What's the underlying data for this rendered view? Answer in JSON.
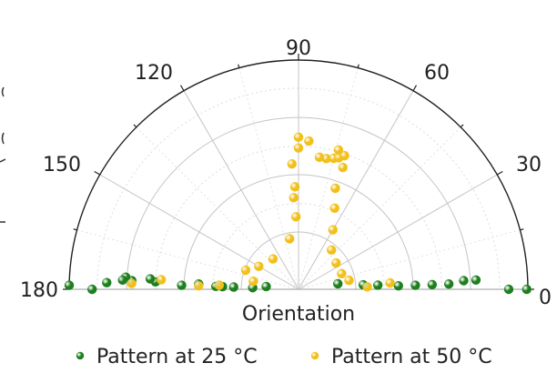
{
  "chart_data": {
    "type": "scatter",
    "coordinate_system": "polar-half",
    "title": "",
    "xlabel": "Orientation",
    "ylabel": "",
    "angle_ticks": [
      "0",
      "30",
      "60",
      "90",
      "120",
      "150",
      "180"
    ],
    "angle_range_deg": [
      0,
      180
    ],
    "radial_range": [
      0,
      1
    ],
    "radial_scale": "sqrt",
    "grid": true,
    "legend_position": "bottom",
    "series": [
      {
        "name": "Pattern at 25 °C",
        "color": "#1e7f1e",
        "points": [
          {
            "angle": 0,
            "r": 0.99
          },
          {
            "angle": 0,
            "r": 0.84
          },
          {
            "angle": 3,
            "r": 0.6
          },
          {
            "angle": 3,
            "r": 0.52
          },
          {
            "angle": 2,
            "r": 0.43
          },
          {
            "angle": 2,
            "r": 0.34
          },
          {
            "angle": 2,
            "r": 0.26
          },
          {
            "angle": 2,
            "r": 0.19
          },
          {
            "angle": 3,
            "r": 0.12
          },
          {
            "angle": 4,
            "r": 0.08
          },
          {
            "angle": 8,
            "r": 0.03
          },
          {
            "angle": 175,
            "r": 0.02
          },
          {
            "angle": 178,
            "r": 0.04
          },
          {
            "angle": 178,
            "r": 0.08
          },
          {
            "angle": 178,
            "r": 0.11
          },
          {
            "angle": 178,
            "r": 0.13
          },
          {
            "angle": 177,
            "r": 0.19
          },
          {
            "angle": 178,
            "r": 0.26
          },
          {
            "angle": 177,
            "r": 0.39
          },
          {
            "angle": 176,
            "r": 0.42
          },
          {
            "angle": 177,
            "r": 0.53
          },
          {
            "angle": 176,
            "r": 0.57
          },
          {
            "angle": 177,
            "r": 0.59
          },
          {
            "angle": 178,
            "r": 0.7
          },
          {
            "angle": 180,
            "r": 0.81
          },
          {
            "angle": 179,
            "r": 1.0
          }
        ]
      },
      {
        "name": "Pattern at 50 °C",
        "color": "#f2c01a",
        "points": [
          {
            "angle": 90,
            "r": 0.44
          },
          {
            "angle": 90,
            "r": 0.38
          },
          {
            "angle": 93,
            "r": 0.3
          },
          {
            "angle": 92,
            "r": 0.2
          },
          {
            "angle": 93,
            "r": 0.16
          },
          {
            "angle": 92,
            "r": 0.1
          },
          {
            "angle": 100,
            "r": 0.05
          },
          {
            "angle": 78,
            "r": 0.34
          },
          {
            "angle": 75,
            "r": 0.35
          },
          {
            "angle": 73,
            "r": 0.36
          },
          {
            "angle": 71,
            "r": 0.38
          },
          {
            "angle": 81,
            "r": 0.34
          },
          {
            "angle": 86,
            "r": 0.42
          },
          {
            "angle": 74,
            "r": 0.4
          },
          {
            "angle": 70,
            "r": 0.32
          },
          {
            "angle": 70,
            "r": 0.22
          },
          {
            "angle": 66,
            "r": 0.15
          },
          {
            "angle": 60,
            "r": 0.09
          },
          {
            "angle": 50,
            "r": 0.05
          },
          {
            "angle": 35,
            "r": 0.04
          },
          {
            "angle": 130,
            "r": 0.03
          },
          {
            "angle": 150,
            "r": 0.04
          },
          {
            "angle": 160,
            "r": 0.06
          },
          {
            "angle": 170,
            "r": 0.04
          },
          {
            "angle": 20,
            "r": 0.04
          },
          {
            "angle": 10,
            "r": 0.05
          },
          {
            "angle": 4,
            "r": 0.16
          },
          {
            "angle": 178,
            "r": 0.53
          },
          {
            "angle": 176,
            "r": 0.36
          },
          {
            "angle": 178,
            "r": 0.19
          },
          {
            "angle": 177,
            "r": 0.12
          },
          {
            "angle": 2,
            "r": 0.09
          }
        ]
      }
    ]
  }
}
